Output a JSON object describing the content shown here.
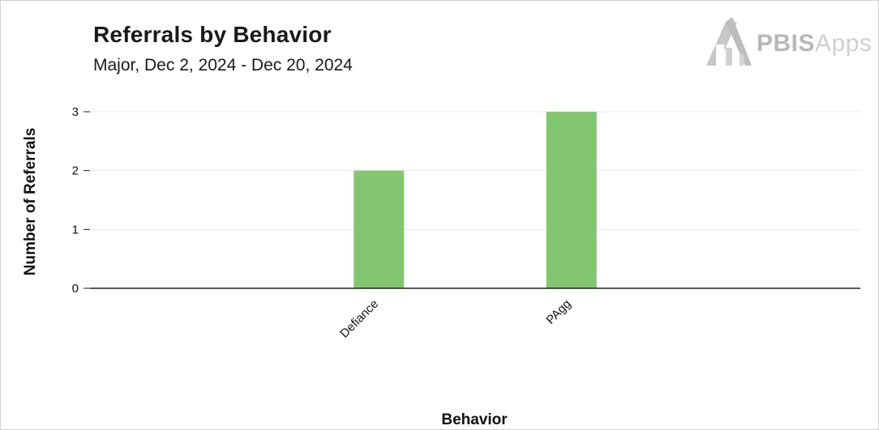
{
  "chart_data": {
    "type": "bar",
    "title": "Referrals by Behavior",
    "subtitle": "Major, Dec 2, 2024 - Dec 20, 2024",
    "xlabel": "Behavior",
    "ylabel": "Number of Referrals",
    "categories": [
      "",
      "Defiance",
      "PAgg",
      ""
    ],
    "values": [
      0,
      2,
      3,
      0
    ],
    "ylim": [
      0,
      3
    ],
    "yticks": [
      "0",
      "1",
      "2",
      "3"
    ],
    "grid": true,
    "legend": "none",
    "bar_color": "#82c76f"
  },
  "logo": {
    "bold_text": "PBIS",
    "light_text": "Apps"
  },
  "colors": {
    "bar": "#82c76f",
    "grid": "#e6e6e6",
    "axis": "#222222"
  }
}
